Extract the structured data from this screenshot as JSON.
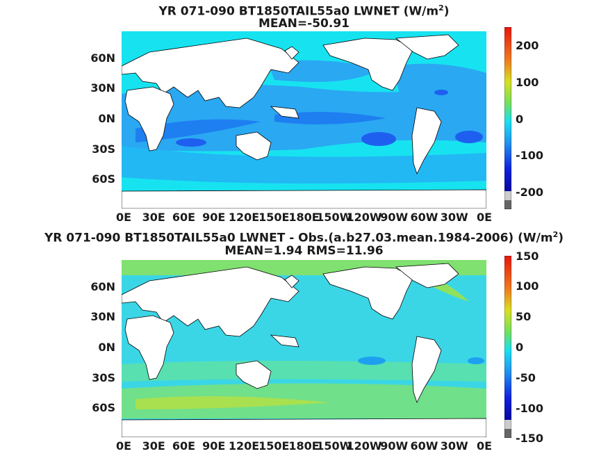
{
  "panel1": {
    "title": "YR 071-090 BT1850TAIL55a0  LWNET (W/m",
    "title_sup": "2",
    "title_end": ")",
    "subtitle": "MEAN=-50.91",
    "y_labels": [
      "60N",
      "30N",
      "0N",
      "30S",
      "60S"
    ],
    "x_labels": [
      "0E",
      "30E",
      "60E",
      "90E",
      "120E",
      "150E",
      "180E",
      "150W",
      "120W",
      "90W",
      "60W",
      "30W",
      "0E"
    ],
    "colorbar_labels": [
      "200",
      "100",
      "0",
      "-100",
      "-200"
    ],
    "ocean_color": "#17e3f0"
  },
  "panel2": {
    "title": "YR 071-090 BT1850TAIL55a0 LWNET - Obs.(a.b27.03.mean.1984-2006) (W/m",
    "title_sup": "2",
    "title_end": ")",
    "subtitle": "MEAN=1.94 RMS=11.96",
    "y_labels": [
      "60N",
      "30N",
      "0N",
      "30S",
      "60S"
    ],
    "x_labels": [
      "0E",
      "30E",
      "60E",
      "90E",
      "120E",
      "150E",
      "180E",
      "150W",
      "120W",
      "90W",
      "60W",
      "30W",
      "0E"
    ],
    "colorbar_labels": [
      "150",
      "100",
      "50",
      "0",
      "-50",
      "-100",
      "-150"
    ],
    "ocean_color": "#3ad6e6"
  }
}
